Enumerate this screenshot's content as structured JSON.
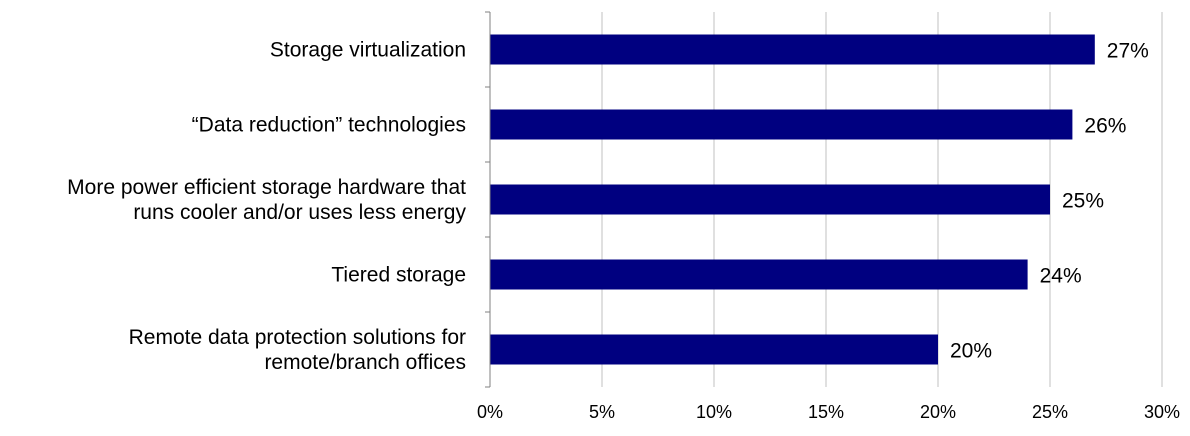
{
  "chart_data": {
    "type": "bar",
    "orientation": "horizontal",
    "categories": [
      [
        "Storage virtualization"
      ],
      [
        "“Data reduction” technologies"
      ],
      [
        "More power efficient storage hardware that",
        "runs cooler and/or uses less energy"
      ],
      [
        "Tiered storage"
      ],
      [
        "Remote data protection solutions for",
        "remote/branch offices"
      ]
    ],
    "values": [
      27,
      26,
      25,
      24,
      20
    ],
    "value_labels": [
      "27%",
      "26%",
      "25%",
      "24%",
      "20%"
    ],
    "xlim": [
      0,
      30
    ],
    "xticks": [
      0,
      5,
      10,
      15,
      20,
      25,
      30
    ],
    "xtick_labels": [
      "0%",
      "5%",
      "10%",
      "15%",
      "20%",
      "25%",
      "30%"
    ],
    "title": "",
    "xlabel": "",
    "ylabel": "",
    "grid": "vertical",
    "legend": "none",
    "colors": {
      "bar": "#000080",
      "grid": "#c0c0c0",
      "axis": "#808080"
    }
  }
}
